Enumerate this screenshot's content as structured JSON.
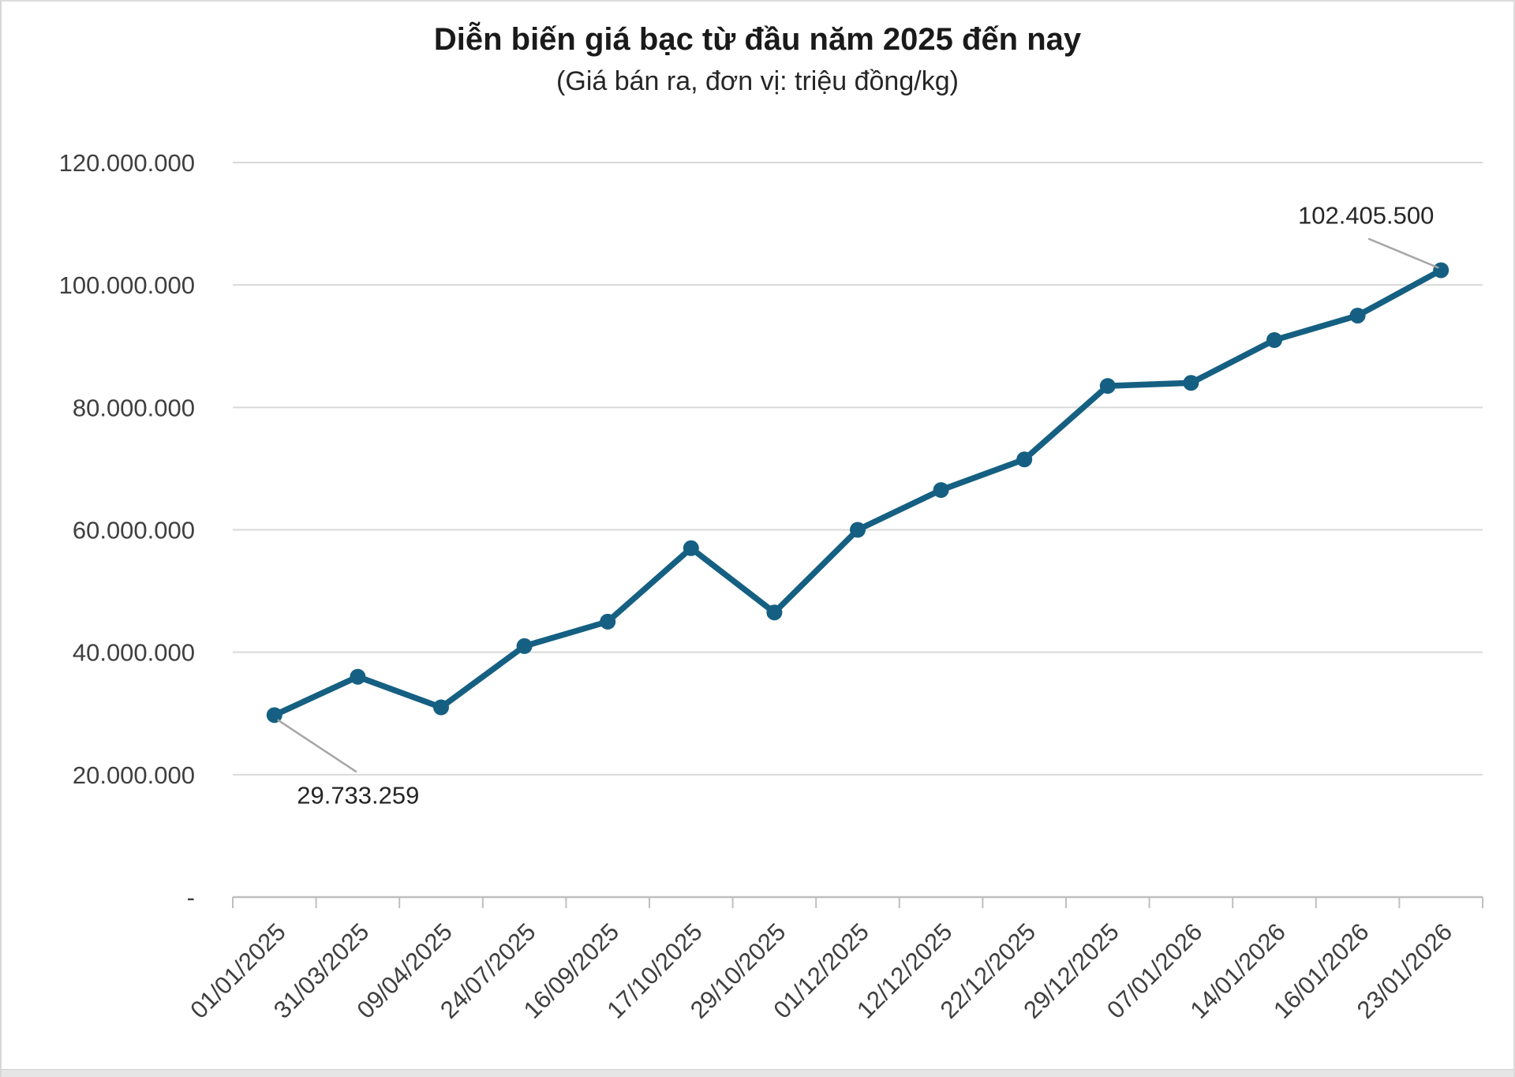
{
  "chart_data": {
    "type": "line",
    "title": "Diễn biến giá bạc từ đầu năm 2025 đến nay",
    "subtitle": "(Giá bán ra, đơn vị: triệu đồng/kg)",
    "categories": [
      "01/01/2025",
      "31/03/2025",
      "09/04/2025",
      "24/07/2025",
      "16/09/2025",
      "17/10/2025",
      "29/10/2025",
      "01/12/2025",
      "12/12/2025",
      "22/12/2025",
      "29/12/2025",
      "07/01/2026",
      "14/01/2026",
      "16/01/2026",
      "23/01/2026"
    ],
    "values": [
      29733259,
      36000000,
      31000000,
      41000000,
      45000000,
      57000000,
      46500000,
      60000000,
      66500000,
      71500000,
      83500000,
      84000000,
      91000000,
      95000000,
      102405500
    ],
    "ylim": [
      0,
      120000000
    ],
    "yticks": [
      {
        "value": 120000000,
        "label": "120.000.000"
      },
      {
        "value": 100000000,
        "label": "100.000.000"
      },
      {
        "value": 80000000,
        "label": "80.000.000"
      },
      {
        "value": 60000000,
        "label": "60.000.000"
      },
      {
        "value": 40000000,
        "label": "40.000.000"
      },
      {
        "value": 20000000,
        "label": "20.000.000"
      },
      {
        "value": 0,
        "label": "-"
      }
    ],
    "annotations": [
      {
        "point_index": 0,
        "label": "29.733.259",
        "placement": "below"
      },
      {
        "point_index": 14,
        "label": "102.405.500",
        "placement": "above"
      }
    ],
    "grid": true,
    "legend": "none",
    "colors": {
      "line": "#156082",
      "marker": "#156082",
      "gridline": "#d9d9d9",
      "axis_line": "#bfbfbf",
      "leader_line": "#a6a6a6",
      "tick_text": "#3f3f3f",
      "annotation_text": "#262626",
      "title_text": "#1a1a1a",
      "background": "#ffffff"
    }
  }
}
